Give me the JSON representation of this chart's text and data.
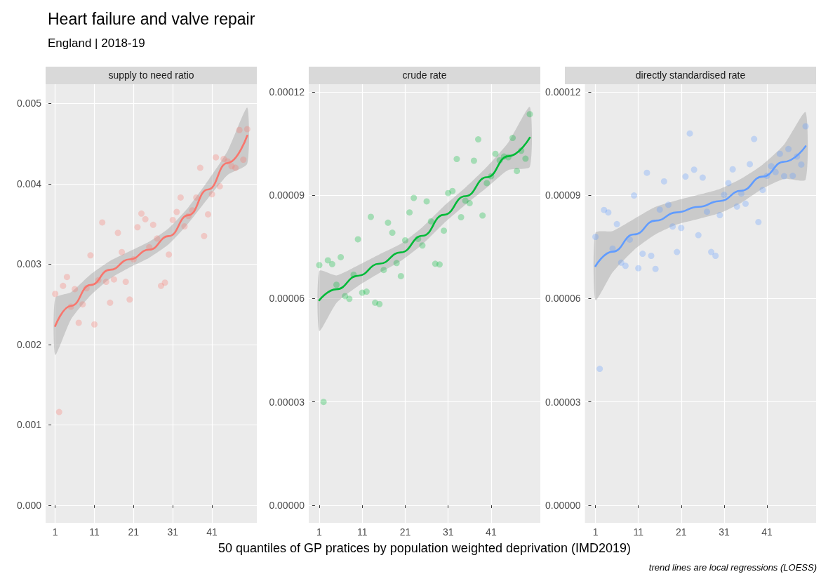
{
  "chart_data": [
    {
      "type": "other",
      "title": "Heart failure and valve repair",
      "subtitle": "England | 2018-19"
    },
    {
      "type": "scatter",
      "title": "supply to need ratio",
      "grid": true,
      "marker": "circle",
      "x": [
        1,
        2,
        3,
        4,
        5,
        6,
        7,
        8,
        9,
        10,
        11,
        12,
        13,
        14,
        15,
        16,
        17,
        18,
        19,
        20,
        21,
        22,
        23,
        24,
        25,
        26,
        27,
        28,
        29,
        30,
        31,
        32,
        33,
        34,
        35,
        36,
        37,
        38,
        39,
        40,
        41,
        42,
        43,
        44,
        45,
        46,
        47,
        48,
        49,
        50
      ],
      "xlim": [
        -1.45,
        52.45
      ],
      "xticks": [
        1,
        11,
        21,
        31,
        41
      ],
      "ylim": [
        -0.00022,
        0.00524
      ],
      "yticks": [
        {
          "value": 0,
          "label": "0.000"
        },
        0.001,
        0.002,
        0.003,
        0.004,
        0.005
      ],
      "series": [
        {
          "type": "scatter",
          "color": "#f8766d",
          "values": [
            0.00263,
            0.00116,
            0.00273,
            0.00284,
            0.00247,
            0.00269,
            0.00227,
            0.0025,
            0.0027,
            0.00311,
            0.00225,
            0.0028,
            0.00352,
            0.00278,
            0.00252,
            0.00281,
            0.00339,
            0.00315,
            0.00278,
            0.00256,
            0.00306,
            0.00346,
            0.00363,
            0.00356,
            0.00321,
            0.00349,
            0.00332,
            0.00273,
            0.00277,
            0.00312,
            0.00355,
            0.00365,
            0.00383,
            0.00347,
            0.0036,
            0.00367,
            0.00383,
            0.0042,
            0.00335,
            0.00362,
            0.00387,
            0.00433,
            0.00397,
            0.00431,
            0.00428,
            0.00422,
            0.0042,
            0.00467,
            0.0043,
            0.00468
          ]
        },
        {
          "type": "line",
          "color": "#f8766d",
          "marker": "none",
          "x": [
            1,
            5,
            10,
            15,
            20,
            25,
            30,
            35,
            40,
            45,
            50
          ],
          "values": [
            0.00223,
            0.00248,
            0.00274,
            0.00293,
            0.00306,
            0.00318,
            0.00335,
            0.00361,
            0.00393,
            0.00426,
            0.0046
          ],
          "lower": [
            0.00187,
            0.00231,
            0.00261,
            0.00282,
            0.00296,
            0.00308,
            0.00325,
            0.00351,
            0.00382,
            0.00411,
            0.00425
          ],
          "upper": [
            0.00258,
            0.00265,
            0.00287,
            0.00304,
            0.00316,
            0.00328,
            0.00345,
            0.00371,
            0.00404,
            0.00441,
            0.00495
          ]
        }
      ]
    },
    {
      "type": "scatter",
      "title": "crude rate",
      "xlabel": "50 quantiles of GP pratices by population weighted deprivation (IMD2019)",
      "grid": true,
      "marker": "circle",
      "x": [
        1,
        2,
        3,
        4,
        5,
        6,
        7,
        8,
        9,
        10,
        11,
        12,
        13,
        14,
        15,
        16,
        17,
        18,
        19,
        20,
        21,
        22,
        23,
        24,
        25,
        26,
        27,
        28,
        29,
        30,
        31,
        32,
        33,
        34,
        35,
        36,
        37,
        38,
        39,
        40,
        41,
        42,
        43,
        44,
        45,
        46,
        47,
        48,
        49,
        50
      ],
      "xlim": [
        -1.45,
        52.45
      ],
      "xticks": [
        1,
        11,
        21,
        31,
        41
      ],
      "ylim": [
        -5.1e-06,
        0.0001222
      ],
      "yticks": [
        {
          "value": 0,
          "label": "0.00000"
        },
        {
          "value": 3e-05,
          "label": "0.00003"
        },
        {
          "value": 6e-05,
          "label": "0.00006"
        },
        {
          "value": 9e-05,
          "label": "0.00009"
        },
        {
          "value": 0.00012,
          "label": "0.00012"
        }
      ],
      "series": [
        {
          "type": "scatter",
          "color": "#00ba38",
          "values": [
            6.97e-05,
            3e-05,
            7.11e-05,
            7e-05,
            6.4e-05,
            7.2e-05,
            6.07e-05,
            5.99e-05,
            6.69e-05,
            7.72e-05,
            6.17e-05,
            6.2e-05,
            8.37e-05,
            5.88e-05,
            5.84e-05,
            6.83e-05,
            8.2e-05,
            7.91e-05,
            7.03e-05,
            6.65e-05,
            7.69e-05,
            8.5e-05,
            8.92e-05,
            7.73e-05,
            7.54e-05,
            8.82e-05,
            8.24e-05,
            7.01e-05,
            6.99e-05,
            7.97e-05,
            9.06e-05,
            9.12e-05,
            0.0001005,
            8.36e-05,
            8.84e-05,
            8.77e-05,
            0.0001,
            0.0001062,
            8.41e-05,
            9.35e-05,
            9.55e-05,
            0.000102,
            0.0001001,
            0.0001012,
            0.000101,
            0.0001066,
            9.7e-05,
            0.0001029,
            0.0001006,
            0.0001135
          ]
        },
        {
          "type": "line",
          "color": "#00ba38",
          "marker": "none",
          "x": [
            1,
            5,
            10,
            15,
            20,
            25,
            30,
            35,
            40,
            45,
            50
          ],
          "values": [
            5.95e-05,
            6.27e-05,
            6.66e-05,
            7.01e-05,
            7.34e-05,
            7.82e-05,
            8.43e-05,
            8.97e-05,
            9.52e-05,
            0.0001013,
            0.0001067
          ],
          "lower": [
            5.06e-05,
            5.87e-05,
            6.36e-05,
            6.74e-05,
            7.09e-05,
            7.57e-05,
            8.18e-05,
            8.72e-05,
            9.22e-05,
            9.73e-05,
            9.82e-05
          ],
          "upper": [
            6.8e-05,
            6.67e-05,
            6.96e-05,
            7.28e-05,
            7.59e-05,
            8.07e-05,
            8.68e-05,
            9.22e-05,
            9.82e-05,
            0.0001053,
            0.0001156
          ]
        }
      ]
    },
    {
      "type": "scatter",
      "title": "directly standardised rate",
      "annotations": [
        "trend lines are local regressions (LOESS)"
      ],
      "grid": true,
      "marker": "circle",
      "x": [
        1,
        2,
        3,
        4,
        5,
        6,
        7,
        8,
        9,
        10,
        11,
        12,
        13,
        14,
        15,
        16,
        17,
        18,
        19,
        20,
        21,
        22,
        23,
        24,
        25,
        26,
        27,
        28,
        29,
        30,
        31,
        32,
        33,
        34,
        35,
        36,
        37,
        38,
        39,
        40,
        41,
        42,
        43,
        44,
        45,
        46,
        47,
        48,
        49,
        50
      ],
      "xlim": [
        -1.45,
        52.45
      ],
      "xticks": [
        1,
        11,
        21,
        31,
        41
      ],
      "ylim": [
        -5.1e-06,
        0.0001222
      ],
      "yticks": [
        {
          "value": 0,
          "label": "0.00000"
        },
        {
          "value": 3e-05,
          "label": "0.00003"
        },
        {
          "value": 6e-05,
          "label": "0.00006"
        },
        {
          "value": 9e-05,
          "label": "0.00009"
        },
        {
          "value": 0.00012,
          "label": "0.00012"
        }
      ],
      "series": [
        {
          "type": "scatter",
          "color": "#619cff",
          "values": [
            7.79e-05,
            3.96e-05,
            8.57e-05,
            8.5e-05,
            7.45e-05,
            8.16e-05,
            7.04e-05,
            6.95e-05,
            7.71e-05,
            8.99e-05,
            6.88e-05,
            7.3e-05,
            9.65e-05,
            7.24e-05,
            6.86e-05,
            8.58e-05,
            9.4e-05,
            8.72e-05,
            8.09e-05,
            7.35e-05,
            8.05e-05,
            9.54e-05,
            0.0001079,
            9.74e-05,
            7.84e-05,
            9.51e-05,
            8.52e-05,
            7.35e-05,
            7.24e-05,
            8.42e-05,
            9.01e-05,
            9.35e-05,
            9.75e-05,
            8.67e-05,
            9.05e-05,
            8.75e-05,
            9.9e-05,
            0.0001063,
            8.22e-05,
            9.15e-05,
            9.56e-05,
            9.84e-05,
            9.67e-05,
            0.000102,
            9.55e-05,
            0.0001034,
            9.56e-05,
            0.0001012,
            9.89e-05,
            0.00011
          ]
        },
        {
          "type": "line",
          "color": "#619cff",
          "marker": "none",
          "x": [
            1,
            5,
            10,
            15,
            20,
            25,
            30,
            35,
            40,
            45,
            50
          ],
          "values": [
            6.94e-05,
            7.36e-05,
            7.86e-05,
            8.26e-05,
            8.5e-05,
            8.66e-05,
            8.83e-05,
            9.13e-05,
            9.54e-05,
            9.97e-05,
            0.0001042
          ],
          "lower": [
            5.95e-05,
            6.76e-05,
            7.41e-05,
            7.86e-05,
            8.15e-05,
            8.31e-05,
            8.48e-05,
            8.78e-05,
            9.19e-05,
            9.47e-05,
            9.45e-05
          ],
          "upper": [
            7.91e-05,
            7.96e-05,
            8.31e-05,
            8.66e-05,
            8.85e-05,
            9.01e-05,
            9.18e-05,
            9.48e-05,
            9.89e-05,
            0.0001047,
            0.0001141
          ]
        }
      ]
    }
  ]
}
